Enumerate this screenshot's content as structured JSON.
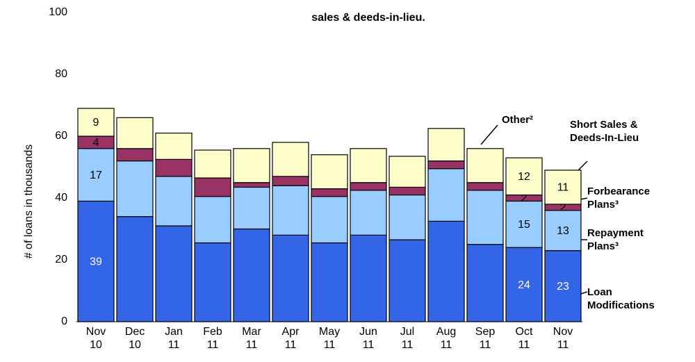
{
  "chart_data": {
    "type": "bar",
    "stacked": true,
    "title": "sales & deeds-in-lieu.",
    "y_label": "# of loans in thousands",
    "categories": [
      "Nov 10",
      "Dec 10",
      "Jan 11",
      "Feb 11",
      "Mar 11",
      "Apr 11",
      "May 11",
      "Jun 11",
      "Jul 11",
      "Aug 11",
      "Sep 11",
      "Oct 11",
      "Nov 11"
    ],
    "series": [
      {
        "name": "Loan Modifications",
        "color": "#3366e6",
        "values": [
          39,
          34,
          31,
          25.5,
          30,
          28,
          25.5,
          28,
          26.5,
          32.5,
          25,
          24,
          23
        ],
        "value_labels": [
          "39",
          null,
          null,
          null,
          null,
          null,
          null,
          null,
          null,
          null,
          null,
          "24",
          "23"
        ]
      },
      {
        "name": "Repayment Plans³",
        "color": "#99ccff",
        "values": [
          17,
          18,
          16,
          15,
          13.5,
          16,
          15,
          14.5,
          14.5,
          17,
          17.5,
          15,
          13
        ],
        "value_labels": [
          "17",
          null,
          null,
          null,
          null,
          null,
          null,
          null,
          null,
          null,
          null,
          "15",
          "13"
        ]
      },
      {
        "name": "Forbearance Plans³",
        "color": "#993366",
        "values": [
          4,
          4,
          5.5,
          6,
          1.5,
          3,
          2.5,
          2.5,
          2.5,
          2.5,
          2.5,
          2,
          2
        ],
        "value_labels": [
          "4",
          null,
          null,
          null,
          null,
          null,
          null,
          null,
          null,
          null,
          null,
          "2",
          "2"
        ]
      },
      {
        "name": "Short Sales & Deeds-In-Lieu",
        "color": "#ffffcc",
        "values": [
          9,
          10,
          8.5,
          9,
          11,
          11,
          11,
          11,
          10,
          10.5,
          11,
          12,
          11
        ],
        "value_labels": [
          "9",
          null,
          null,
          null,
          null,
          null,
          null,
          null,
          null,
          null,
          null,
          "12",
          "11"
        ]
      }
    ],
    "annotations": [
      "Other²"
    ],
    "ylim": [
      0,
      100
    ],
    "yticks": [
      0,
      20,
      40,
      60,
      80,
      100
    ],
    "grid": false
  }
}
